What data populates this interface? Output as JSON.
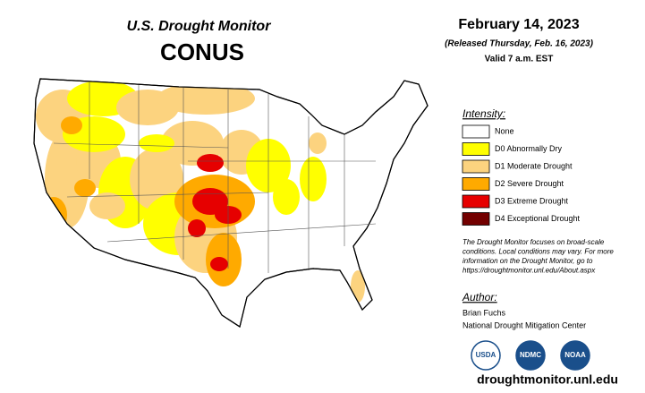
{
  "header": {
    "title": "U.S. Drought Monitor",
    "region": "CONUS",
    "date": "February 14, 2023",
    "released": "(Released Thursday, Feb. 16, 2023)",
    "valid": "Valid 7 a.m. EST"
  },
  "legend": {
    "title": "Intensity:",
    "items": [
      {
        "label": "None",
        "color": "#ffffff"
      },
      {
        "label": "D0 Abnormally Dry",
        "color": "#ffff00"
      },
      {
        "label": "D1 Moderate Drought",
        "color": "#fcd37f"
      },
      {
        "label": "D2 Severe Drought",
        "color": "#ffaa00"
      },
      {
        "label": "D3 Extreme Drought",
        "color": "#e60000"
      },
      {
        "label": "D4 Exceptional Drought",
        "color": "#730000"
      }
    ]
  },
  "note": [
    "The Drought Monitor focuses on broad-scale",
    "conditions. Local conditions may vary. For more",
    "information on the Drought Monitor, go to",
    "https://droughtmonitor.unl.edu/About.aspx"
  ],
  "author": {
    "title": "Author:",
    "name": "Brian Fuchs",
    "org": "National Drought Mitigation Center"
  },
  "logos": [
    "USDA",
    "NDMC",
    "NOAA"
  ],
  "footer": {
    "url": "droughtmonitor.unl.edu"
  }
}
